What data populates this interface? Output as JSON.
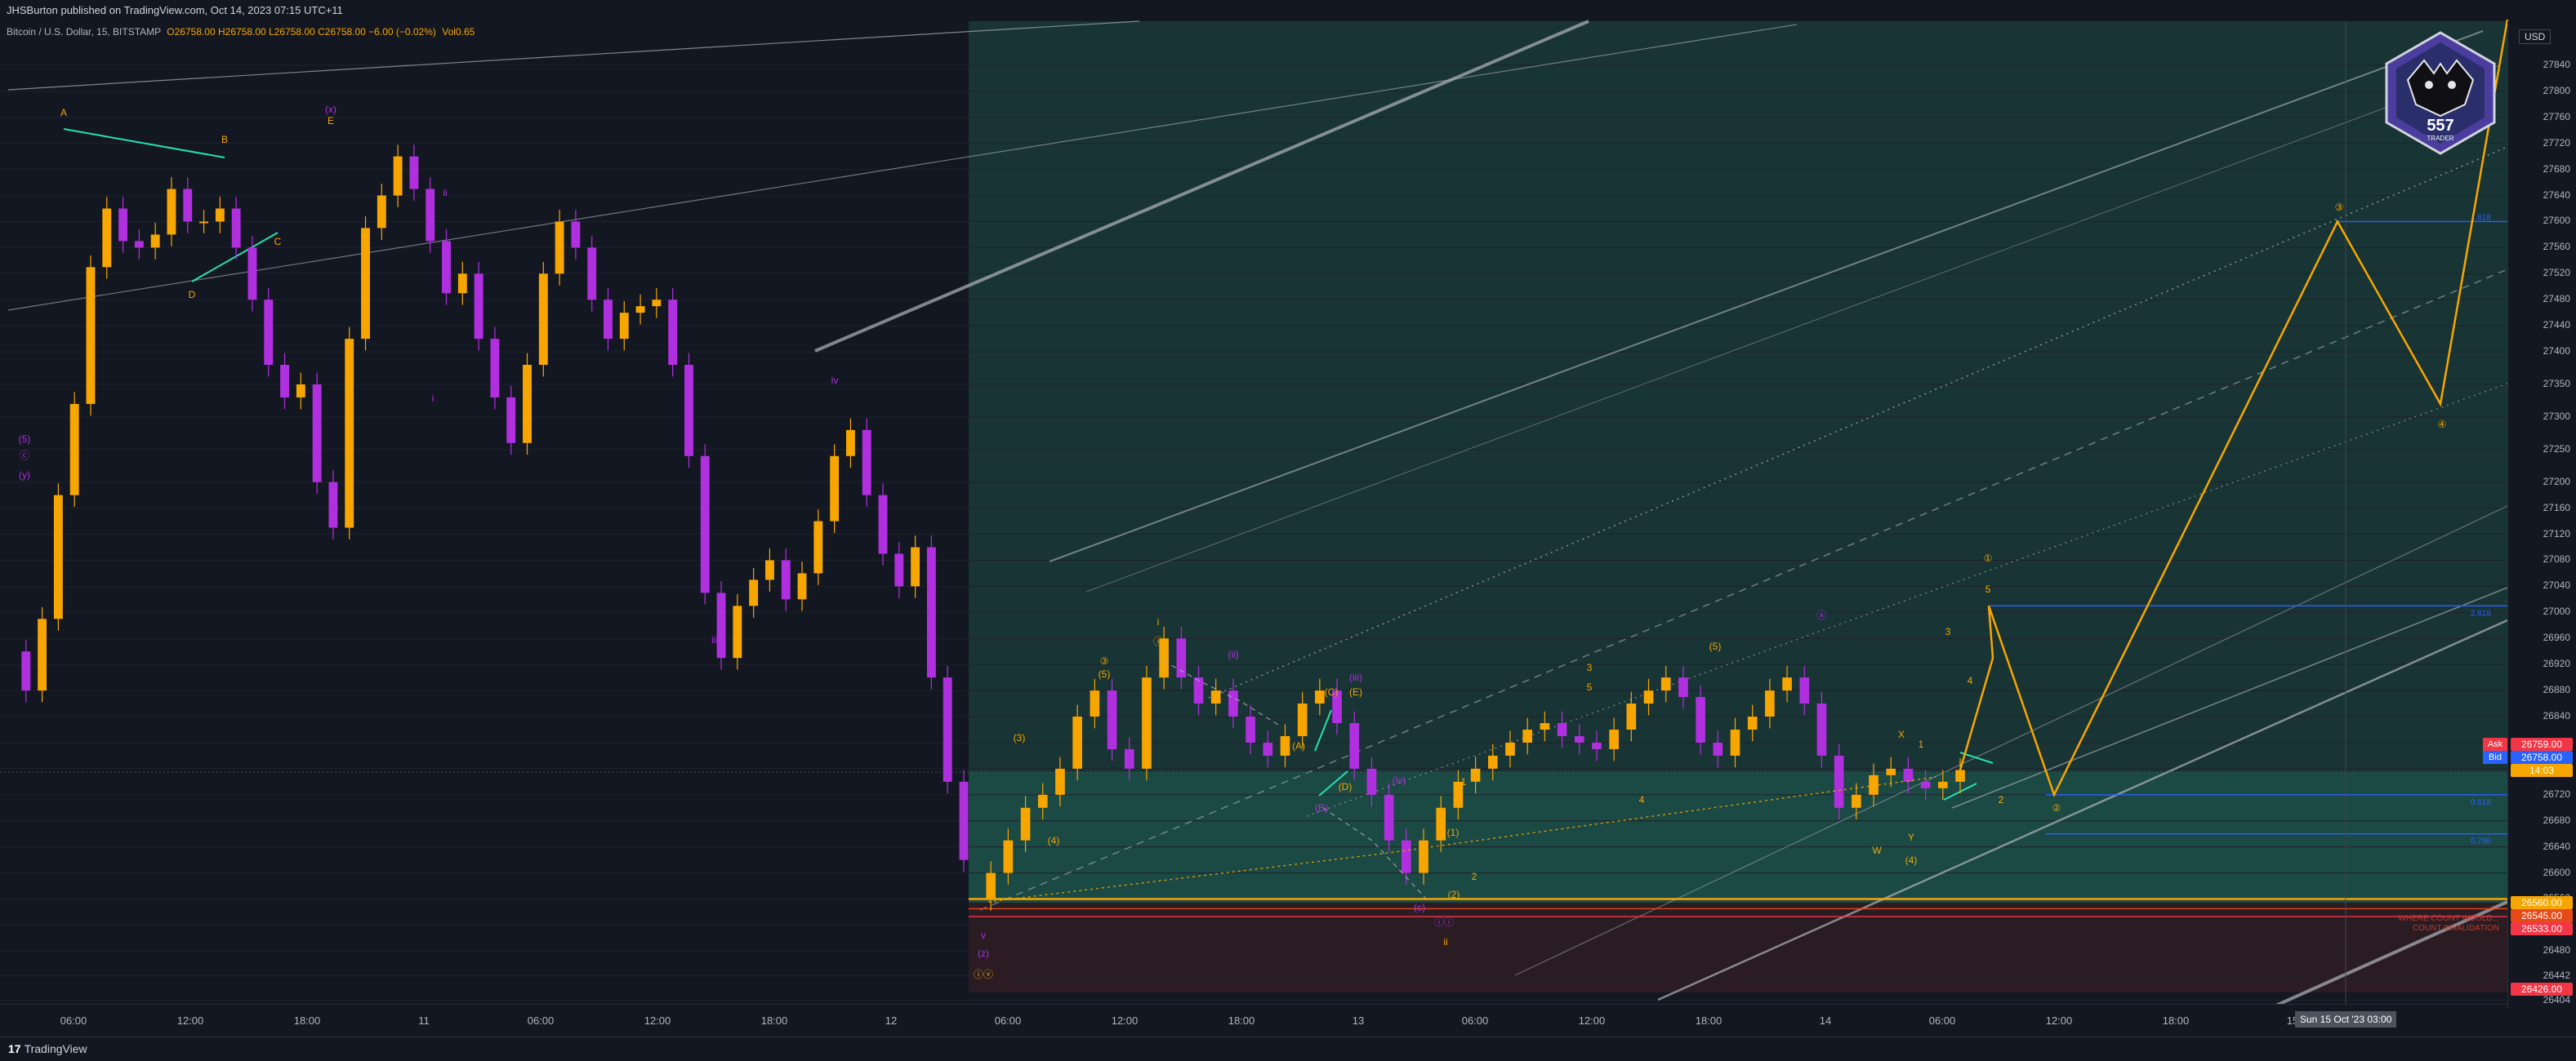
{
  "header": {
    "published": "JHSBurton published on TradingView.com, Oct 14, 2023 07:15 UTC+11",
    "symbol": "Bitcoin / U.S. Dollar, 15, BITSTAMP",
    "ohlc": "O26758.00 H26758.00 L26758.00 C26758.00 −6.00 (−0.02%)",
    "volume": "Vol0.65"
  },
  "footer": {
    "brand": "TradingView",
    "logo": "17"
  },
  "badge": {
    "text_top": "557",
    "text_bottom": "TRADER"
  },
  "axis": {
    "currency": "USD"
  },
  "colors": {
    "background": "#131722",
    "up": "#f7a600",
    "down": "#b030e0",
    "zone_green": "#1c4a44",
    "zone_red": "#2a1a20",
    "projection": "#f7a600",
    "channel": "#b2b5be"
  },
  "chart_data": {
    "type": "line",
    "title": "",
    "xlabel": "",
    "ylabel": "",
    "ylim": [
      26404,
      27890
    ],
    "y_ticks": [
      27840,
      27800,
      27760,
      27720,
      27680,
      27640,
      27600,
      27560,
      27520,
      27480,
      27440,
      27400,
      27350,
      27300,
      27250,
      27200,
      27160,
      27120,
      27080,
      27040,
      27000,
      26960,
      26920,
      26880,
      26840,
      26800,
      26760,
      26720,
      26680,
      26640,
      26600,
      26560,
      26520,
      26480,
      26442,
      26404
    ],
    "x_ticks": [
      "06:00",
      "12:00",
      "18:00",
      "11",
      "06:00",
      "12:00",
      "18:00",
      "12",
      "06:00",
      "12:00",
      "18:00",
      "13",
      "06:00",
      "12:00",
      "18:00",
      "14",
      "06:00",
      "12:00",
      "18:00",
      "15"
    ],
    "price_labels": [
      {
        "name": "Ask",
        "value": "26759.00",
        "color": "#f23645"
      },
      {
        "name": "Bid",
        "value": "26758.00",
        "color": "#2962ff"
      },
      {
        "name": "",
        "value": "14:03",
        "color": "#f7a600"
      },
      {
        "name": "",
        "value": "26560.00",
        "color": "#f7a600"
      },
      {
        "name": "",
        "value": "26545.00",
        "color": "#e64a19"
      },
      {
        "name": "",
        "value": "26533.00",
        "color": "#f23645"
      },
      {
        "name": "",
        "value": "26426.00",
        "color": "#f23645"
      }
    ],
    "crosshair_time": "Sun 15 Oct '23   03:00",
    "series": [
      {
        "name": "",
        "values": [
          26940,
          26880,
          26990,
          27180,
          27320,
          27530,
          27620,
          27570,
          27560,
          27580,
          27650,
          27600,
          27600,
          27620,
          27560,
          27480,
          27380,
          27330,
          27350,
          27200,
          27130,
          27420,
          27590,
          27640,
          27700,
          27650,
          27570,
          27490,
          27520,
          27420,
          27330,
          27260,
          27380,
          27520,
          27600,
          27560,
          27480,
          27420,
          27460,
          27470,
          27480,
          27380,
          27240,
          27030,
          26930,
          27010,
          27050,
          27080,
          27020,
          27060,
          27140,
          27240,
          27280,
          27180,
          27090,
          27040,
          27100,
          26900,
          26740,
          26620
        ]
      },
      {
        "name": "",
        "values": [
          26560,
          26600,
          26650,
          26700,
          26720,
          26760,
          26840,
          26880,
          26790,
          26760,
          26900,
          26960,
          26900,
          26860,
          26880,
          26840,
          26800,
          26780,
          26810,
          26860,
          26880,
          26830,
          26760,
          26720,
          26650,
          26600,
          26650,
          26700,
          26740,
          26760,
          26780,
          26800,
          26820,
          26830,
          26810,
          26800,
          26790,
          26820,
          26860,
          26880,
          26900,
          26870,
          26800,
          26780,
          26820,
          26840,
          26880,
          26900,
          26860,
          26780,
          26700,
          26720,
          26750,
          26760,
          26740,
          26730,
          26740,
          26758
        ]
      }
    ],
    "projection": {
      "name": "",
      "points": [
        [
          0,
          26758
        ],
        [
          1,
          26930
        ],
        [
          2,
          27010
        ],
        [
          3,
          26720
        ],
        [
          4,
          27600
        ],
        [
          5,
          27320
        ],
        [
          6,
          27910
        ]
      ]
    },
    "levels": [
      {
        "value": 26560
      },
      {
        "value": 26545
      },
      {
        "value": 26533
      },
      {
        "value": 27010
      },
      {
        "value": 27600
      },
      {
        "value": 26720
      },
      {
        "value": 26660
      }
    ],
    "level_labels": [
      "2.618",
      "1.618",
      "0.618",
      "0.786"
    ],
    "zone_notes": [
      "WHERE COUNT WOULD...",
      "COUNT INVALIDATION"
    ],
    "wave_labels": [
      "A",
      "B",
      "C",
      "D",
      "E",
      "(x)",
      "(5)",
      "ⓒ",
      "(y)",
      "ii",
      "i",
      "iii",
      "iv",
      "v",
      "(z)",
      "ⓘⓥ",
      "(3)",
      "(4)",
      "(5)",
      "③",
      "ⓘ",
      "i",
      "ii",
      "(C)",
      "(E)",
      "(D)",
      "(B)",
      "(A)",
      "(ii)",
      "(iii)",
      "(iv)",
      "(c)",
      "ⓘⓘ",
      "(2)",
      "(1)",
      "3",
      "4",
      "5",
      "1",
      "2",
      "W",
      "X",
      "Y",
      "(4)",
      "ⓐ",
      "(5)",
      "1",
      "2",
      "3",
      "4",
      "5",
      "①",
      "②",
      "③",
      "④"
    ]
  }
}
